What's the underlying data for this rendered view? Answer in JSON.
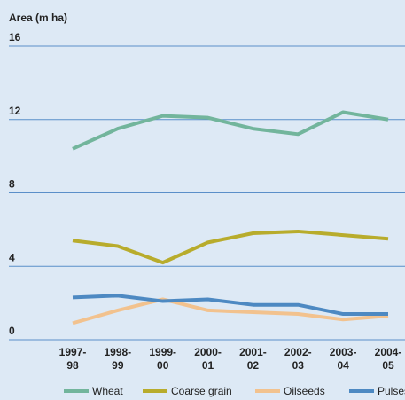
{
  "chart_data": {
    "type": "line",
    "y_label": "Area (m ha)",
    "categories": [
      "1997-\n98",
      "1998-\n99",
      "1999-\n00",
      "2000-\n01",
      "2001-\n02",
      "2002-\n03",
      "2003-\n04",
      "2004-\n05"
    ],
    "series": [
      {
        "name": "Wheat",
        "color": "#72b59c",
        "values": [
          10.4,
          11.5,
          12.2,
          12.1,
          11.5,
          11.2,
          12.4,
          12.0
        ]
      },
      {
        "name": "Coarse grain",
        "color": "#b8ac2c",
        "values": [
          5.4,
          5.1,
          4.2,
          5.3,
          5.8,
          5.9,
          5.7,
          5.5
        ]
      },
      {
        "name": "Oilseeds",
        "color": "#f2c28e",
        "values": [
          0.9,
          1.6,
          2.2,
          1.6,
          1.5,
          1.4,
          1.1,
          1.3
        ]
      },
      {
        "name": "Pulses",
        "color": "#4d89c2",
        "values": [
          2.3,
          2.4,
          2.1,
          2.2,
          1.9,
          1.9,
          1.4,
          1.4
        ]
      }
    ],
    "ylim": [
      0,
      16
    ],
    "yticks": [
      0,
      4,
      8,
      12,
      16
    ],
    "grid": true,
    "legend": "bottom"
  }
}
